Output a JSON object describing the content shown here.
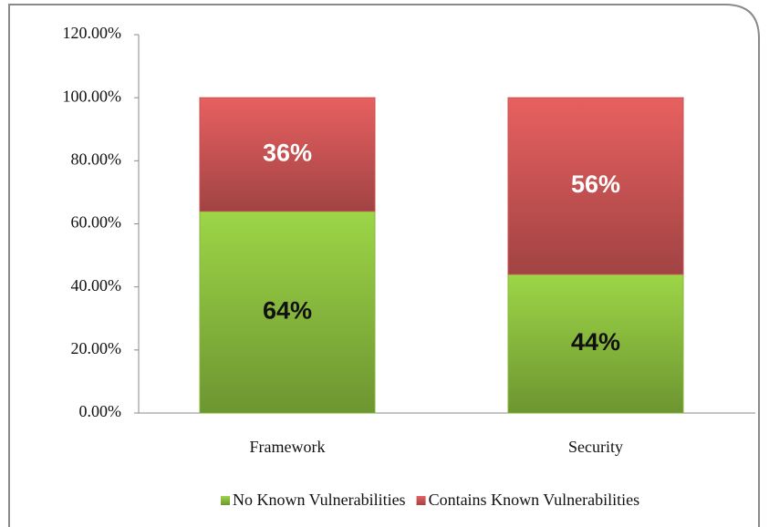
{
  "chart_data": {
    "type": "stacked_bar",
    "categories": [
      "Framework",
      "Security"
    ],
    "series": [
      {
        "name": "No Known Vulnerabilities",
        "color": "#8cbf3f",
        "label_color": "#111111",
        "values": [
          64,
          44
        ],
        "value_labels": [
          "64%",
          "44%"
        ]
      },
      {
        "name": "Contains Known Vulnerabilities",
        "color": "#cf5656",
        "label_color": "#ffffff",
        "values": [
          36,
          56
        ],
        "value_labels": [
          "36%",
          "56%"
        ]
      }
    ],
    "ylim": [
      0,
      120
    ],
    "yticks": [
      {
        "value": 0,
        "label": "0.00%"
      },
      {
        "value": 20,
        "label": "20.00%"
      },
      {
        "value": 40,
        "label": "40.00%"
      },
      {
        "value": 60,
        "label": "60.00%"
      },
      {
        "value": 80,
        "label": "80.00%"
      },
      {
        "value": 100,
        "label": "100.00%"
      },
      {
        "value": 120,
        "label": "120.00%"
      }
    ],
    "grid": false,
    "legend": "bottom"
  }
}
